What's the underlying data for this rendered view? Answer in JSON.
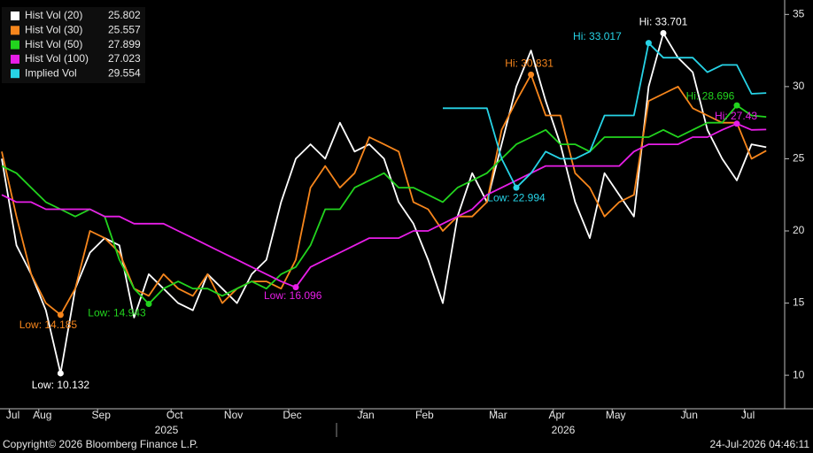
{
  "chart_data": {
    "type": "line",
    "categories": [
      null,
      "Jul",
      null,
      "Aug",
      null,
      null,
      null,
      "Sep",
      null,
      null,
      null,
      null,
      "Oct",
      null,
      null,
      null,
      "Nov",
      null,
      null,
      null,
      "Dec",
      null,
      null,
      null,
      null,
      "Jan",
      null,
      null,
      null,
      "Feb",
      null,
      null,
      null,
      null,
      "Mar",
      null,
      null,
      null,
      "Apr",
      null,
      null,
      null,
      "May",
      null,
      null,
      null,
      null,
      "Jun",
      null,
      null,
      null,
      "Jul",
      null
    ],
    "year_labels": [
      "2025",
      "2026"
    ],
    "series": [
      {
        "name": "Hist Vol (20)",
        "color": "#ffffff",
        "low_label": "Low: 10.132",
        "hi_label": "Hi: 33.701",
        "values": [
          25,
          19,
          17,
          14.5,
          10.132,
          16,
          18.5,
          19.5,
          19,
          14,
          17,
          16,
          15,
          14.5,
          17,
          16,
          15,
          17,
          18,
          22,
          25,
          26,
          25,
          27.5,
          25.5,
          26,
          25,
          22,
          20.5,
          18,
          15,
          21,
          24,
          22,
          26,
          30,
          32.5,
          29,
          26,
          22,
          19.5,
          24,
          22.5,
          21,
          30,
          33.701,
          32,
          31,
          27,
          25,
          23.5,
          26,
          25.802
        ]
      },
      {
        "name": "Hist Vol (30)",
        "color": "#f7861c",
        "low_label": "Low: 14.185",
        "hi_label": "Hi: 30.831",
        "values": [
          25.5,
          21,
          17,
          15,
          14.185,
          16,
          20,
          19.5,
          18.5,
          16,
          15.5,
          17,
          16,
          15.5,
          17,
          15,
          16,
          16.5,
          16.5,
          16,
          18,
          23,
          24.5,
          23,
          24,
          26.5,
          26,
          25.5,
          22,
          21.5,
          20,
          21,
          21,
          22,
          27,
          29,
          30.831,
          28,
          28,
          24,
          23,
          21,
          22,
          22.5,
          29,
          29.5,
          30,
          28.5,
          28,
          27.5,
          27.5,
          25,
          25.557
        ]
      },
      {
        "name": "Hist Vol (50)",
        "color": "#22d41e",
        "low_label": "Low: 14.943",
        "hi_label": "Hi: 28.696",
        "values": [
          24.5,
          24,
          23,
          22,
          21.5,
          21,
          21.5,
          21,
          18,
          16,
          14.943,
          16,
          16.5,
          16,
          16,
          15.5,
          16,
          16.5,
          16,
          17,
          17.5,
          19,
          21.5,
          21.5,
          23,
          23.5,
          24,
          23,
          23,
          22.5,
          22,
          23,
          23.5,
          24,
          25,
          26,
          26.5,
          27,
          26,
          26,
          25.5,
          26.5,
          26.5,
          26.5,
          26.5,
          27,
          26.5,
          27,
          27.5,
          27.5,
          28.696,
          28,
          27.899
        ]
      },
      {
        "name": "Hist Vol (100)",
        "color": "#e81ee8",
        "low_label": "Low: 16.096",
        "hi_label": "Hi: 27.43",
        "values": [
          22.5,
          22,
          22,
          21.5,
          21.5,
          21.5,
          21.5,
          21,
          21,
          20.5,
          20.5,
          20.5,
          20,
          19.5,
          19,
          18.5,
          18,
          17.5,
          17,
          16.5,
          16.096,
          17.5,
          18,
          18.5,
          19,
          19.5,
          19.5,
          19.5,
          20,
          20,
          20.5,
          21,
          21.5,
          22.5,
          23,
          23.5,
          24,
          24.5,
          24.5,
          24.5,
          24.5,
          24.5,
          24.5,
          25.5,
          26,
          26,
          26,
          26.5,
          26.5,
          27,
          27.43,
          27,
          27.023
        ]
      },
      {
        "name": "Implied Vol",
        "color": "#27d3e6",
        "low_label": "Low: 22.994",
        "hi_label": "Hi: 33.017",
        "values": [
          null,
          null,
          null,
          null,
          null,
          null,
          null,
          null,
          null,
          null,
          null,
          null,
          null,
          null,
          null,
          null,
          null,
          null,
          null,
          null,
          null,
          null,
          null,
          null,
          null,
          null,
          null,
          null,
          null,
          null,
          28.5,
          28.5,
          28.5,
          28.5,
          25,
          22.994,
          24,
          25.5,
          25,
          25,
          25.5,
          28,
          28,
          28,
          33.017,
          32,
          32,
          32,
          31,
          31.5,
          31.5,
          29.5,
          29.554
        ]
      }
    ],
    "ylim": [
      7.8,
      36
    ],
    "yticks": [
      10,
      15,
      20,
      25,
      30,
      35
    ],
    "grid": false,
    "footer_left": "Copyright© 2026 Bloomberg Finance L.P.",
    "footer_right": "24-Jul-2026 04:46:11"
  }
}
